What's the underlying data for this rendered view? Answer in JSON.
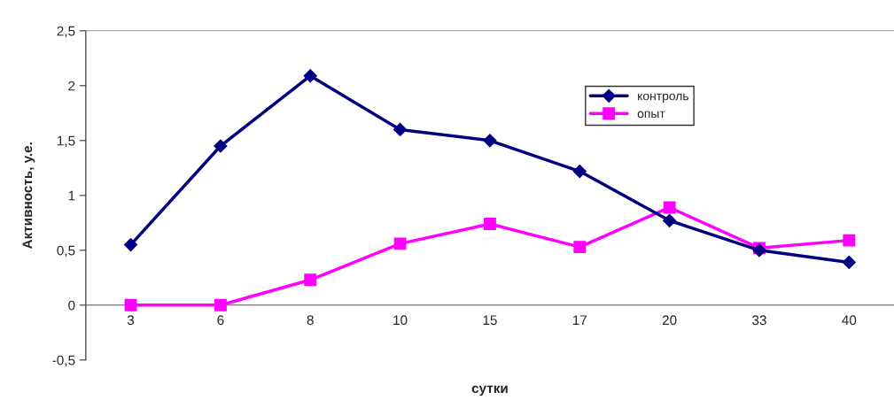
{
  "chart_data": {
    "type": "line",
    "xlabel": "сутки",
    "ylabel": "Активность, у.е.",
    "categories": [
      "3",
      "6",
      "8",
      "10",
      "15",
      "17",
      "20",
      "33",
      "40"
    ],
    "series": [
      {
        "name": "контроль",
        "color": "#000080",
        "marker": "diamond",
        "values": [
          0.55,
          1.45,
          2.09,
          1.6,
          1.5,
          1.22,
          0.77,
          0.5,
          0.39
        ]
      },
      {
        "name": "опыт",
        "color": "#ff00ff",
        "marker": "square",
        "values": [
          0,
          0,
          0.23,
          0.56,
          0.74,
          0.53,
          0.89,
          0.52,
          0.59
        ]
      }
    ],
    "ylim": [
      -0.5,
      2.5
    ],
    "yticks": [
      {
        "value": -0.5,
        "label": "-0,5"
      },
      0,
      {
        "value": 0.5,
        "label": "0,5"
      },
      1,
      {
        "value": 1.5,
        "label": "1,5"
      },
      2,
      {
        "value": 2.5,
        "label": "2,5"
      }
    ],
    "grid": false,
    "legend": "top right",
    "line_style": "solid"
  }
}
